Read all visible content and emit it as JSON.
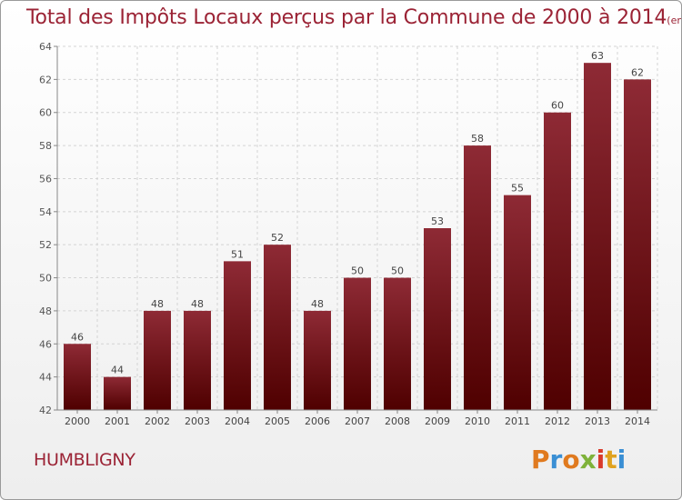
{
  "chart_data": {
    "type": "bar",
    "title": "Total des Impôts Locaux perçus par la Commune de 2000 à 2014",
    "unit_note": "(en milliers d'€)",
    "categories": [
      "2000",
      "2001",
      "2002",
      "2003",
      "2004",
      "2005",
      "2006",
      "2007",
      "2008",
      "2009",
      "2010",
      "2011",
      "2012",
      "2013",
      "2014"
    ],
    "values": [
      46,
      44,
      48,
      48,
      51,
      52,
      48,
      50,
      50,
      53,
      58,
      55,
      60,
      63,
      62
    ],
    "ylim": [
      42,
      64
    ],
    "yticks": [
      42,
      44,
      46,
      48,
      50,
      52,
      54,
      56,
      58,
      60,
      62,
      64
    ],
    "grid": true,
    "xlabel": "",
    "ylabel": "",
    "bar_color_top": "#8e2a35",
    "bar_color_bottom": "#4f0000"
  },
  "commune": "HUMBLIGNY",
  "logo": {
    "text": "Proxiti",
    "letters": [
      {
        "ch": "P",
        "color": "#e07a1f"
      },
      {
        "ch": "r",
        "color": "#3a8fd4"
      },
      {
        "ch": "o",
        "color": "#e07a1f"
      },
      {
        "ch": "x",
        "color": "#7fb23a"
      },
      {
        "ch": "i",
        "color": "#d93a2b"
      },
      {
        "ch": "t",
        "color": "#e0a21f"
      },
      {
        "ch": "i",
        "color": "#3a8fd4"
      }
    ]
  }
}
